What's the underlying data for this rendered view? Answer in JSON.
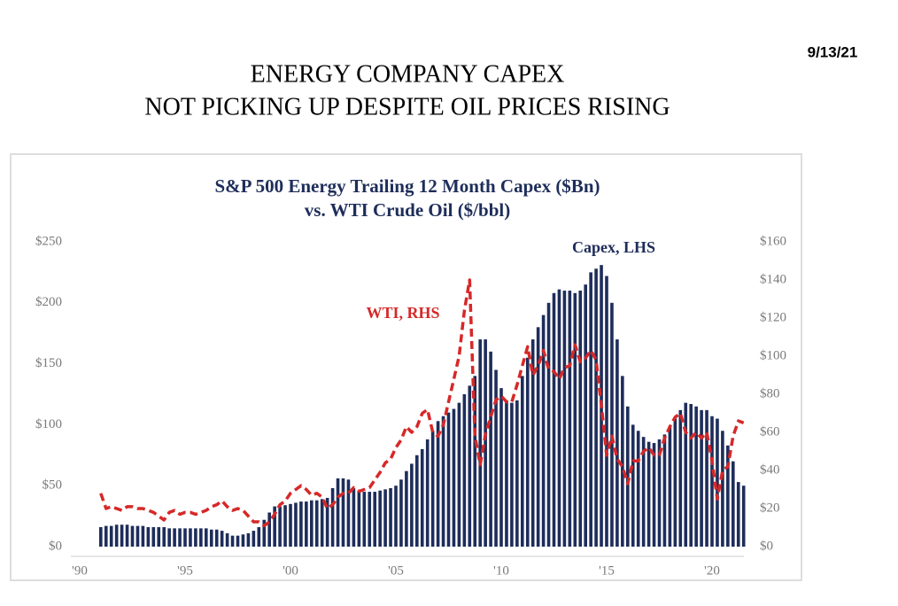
{
  "date": "9/13/21",
  "headline": [
    "ENERGY COMPANY CAPEX",
    "NOT PICKING UP DESPITE OIL PRICES RISING"
  ],
  "chart_data": {
    "type": "bar-line",
    "title": [
      "S&P 500 Energy Trailing 12 Month Capex ($Bn)",
      "vs. WTI Crude Oil ($/bbl)"
    ],
    "annotations": [
      "Capex, LHS",
      "WTI, RHS"
    ],
    "x": [
      1991,
      1991.25,
      1991.5,
      1991.75,
      1992,
      1992.25,
      1992.5,
      1992.75,
      1993,
      1993.25,
      1993.5,
      1993.75,
      1994,
      1994.25,
      1994.5,
      1994.75,
      1995,
      1995.25,
      1995.5,
      1995.75,
      1996,
      1996.25,
      1996.5,
      1996.75,
      1997,
      1997.25,
      1997.5,
      1997.75,
      1998,
      1998.25,
      1998.5,
      1998.75,
      1999,
      1999.25,
      1999.5,
      1999.75,
      2000,
      2000.25,
      2000.5,
      2000.75,
      2001,
      2001.25,
      2001.5,
      2001.75,
      2002,
      2002.25,
      2002.5,
      2002.75,
      2003,
      2003.25,
      2003.5,
      2003.75,
      2004,
      2004.25,
      2004.5,
      2004.75,
      2005,
      2005.25,
      2005.5,
      2005.75,
      2006,
      2006.25,
      2006.5,
      2006.75,
      2007,
      2007.25,
      2007.5,
      2007.75,
      2008,
      2008.25,
      2008.5,
      2008.75,
      2009,
      2009.25,
      2009.5,
      2009.75,
      2010,
      2010.25,
      2010.5,
      2010.75,
      2011,
      2011.25,
      2011.5,
      2011.75,
      2012,
      2012.25,
      2012.5,
      2012.75,
      2013,
      2013.25,
      2013.5,
      2013.75,
      2014,
      2014.25,
      2014.5,
      2014.75,
      2015,
      2015.25,
      2015.5,
      2015.75,
      2016,
      2016.25,
      2016.5,
      2016.75,
      2017,
      2017.25,
      2017.5,
      2017.75,
      2018,
      2018.25,
      2018.5,
      2018.75,
      2019,
      2019.25,
      2019.5,
      2019.75,
      2020,
      2020.25,
      2020.5,
      2020.75,
      2021,
      2021.25,
      2021.5
    ],
    "series": [
      {
        "name": "Capex",
        "kind": "bar",
        "color": "#1e2d5a",
        "values": [
          16,
          17,
          17,
          18,
          18,
          18,
          17,
          17,
          17,
          16,
          16,
          16,
          16,
          15,
          15,
          15,
          15,
          15,
          15,
          15,
          15,
          14,
          14,
          13,
          11,
          9,
          9,
          10,
          11,
          13,
          16,
          22,
          28,
          33,
          33,
          34,
          35,
          36,
          37,
          37,
          38,
          38,
          39,
          40,
          48,
          56,
          56,
          55,
          48,
          46,
          45,
          45,
          45,
          46,
          47,
          48,
          50,
          55,
          62,
          68,
          75,
          80,
          88,
          95,
          103,
          107,
          110,
          113,
          118,
          125,
          132,
          140,
          170,
          170,
          160,
          145,
          130,
          120,
          118,
          120,
          140,
          155,
          170,
          180,
          190,
          200,
          208,
          211,
          210,
          210,
          208,
          210,
          215,
          225,
          228,
          231,
          222,
          200,
          170,
          140,
          115,
          100,
          95,
          90,
          86,
          85,
          88,
          92,
          98,
          105,
          112,
          118,
          117,
          115,
          112,
          112,
          107,
          105,
          95,
          83,
          70,
          53,
          50
        ]
      },
      {
        "name": "WTI",
        "kind": "line",
        "axis": "y2",
        "color": "#d62828",
        "values": [
          28,
          20,
          21,
          20,
          19,
          21,
          21,
          20,
          20,
          19,
          18,
          16,
          14,
          18,
          19,
          17,
          18,
          18,
          17,
          18,
          19,
          21,
          22,
          24,
          21,
          19,
          20,
          19,
          16,
          13,
          13,
          11,
          13,
          17,
          22,
          24,
          28,
          30,
          32,
          30,
          27,
          28,
          26,
          20,
          22,
          26,
          28,
          28,
          31,
          29,
          30,
          31,
          35,
          39,
          44,
          46,
          52,
          56,
          63,
          60,
          63,
          70,
          72,
          60,
          58,
          64,
          76,
          88,
          100,
          124,
          140,
          58,
          43,
          59,
          68,
          77,
          79,
          76,
          76,
          85,
          95,
          105,
          90,
          95,
          103,
          93,
          92,
          88,
          94,
          95,
          106,
          97,
          99,
          103,
          98,
          74,
          48,
          58,
          46,
          42,
          33,
          45,
          45,
          50,
          52,
          48,
          48,
          57,
          63,
          68,
          70,
          60,
          57,
          60,
          57,
          60,
          45,
          25,
          40,
          42,
          58,
          66,
          65
        ]
      }
    ],
    "xlim": [
      1990,
      2022
    ],
    "xticks": [
      {
        "value": 1990,
        "label": "'90"
      },
      {
        "value": 1995,
        "label": "'95"
      },
      {
        "value": 2000,
        "label": "'00"
      },
      {
        "value": 2005,
        "label": "'05"
      },
      {
        "value": 2010,
        "label": "'10"
      },
      {
        "value": 2015,
        "label": "'15"
      },
      {
        "value": 2020,
        "label": "'20"
      }
    ],
    "ylim": [
      0,
      250
    ],
    "yticks": [
      {
        "value": 0,
        "label": "$0"
      },
      {
        "value": 50,
        "label": "$50"
      },
      {
        "value": 100,
        "label": "$100"
      },
      {
        "value": 150,
        "label": "$150"
      },
      {
        "value": 200,
        "label": "$200"
      },
      {
        "value": 250,
        "label": "$250"
      }
    ],
    "y2lim": [
      0,
      160
    ],
    "y2ticks": [
      {
        "value": 0,
        "label": "$0"
      },
      {
        "value": 20,
        "label": "$20"
      },
      {
        "value": 40,
        "label": "$40"
      },
      {
        "value": 60,
        "label": "$60"
      },
      {
        "value": 80,
        "label": "$80"
      },
      {
        "value": 100,
        "label": "$100"
      },
      {
        "value": 120,
        "label": "$120"
      },
      {
        "value": 140,
        "label": "$140"
      },
      {
        "value": 160,
        "label": "$160"
      }
    ]
  }
}
